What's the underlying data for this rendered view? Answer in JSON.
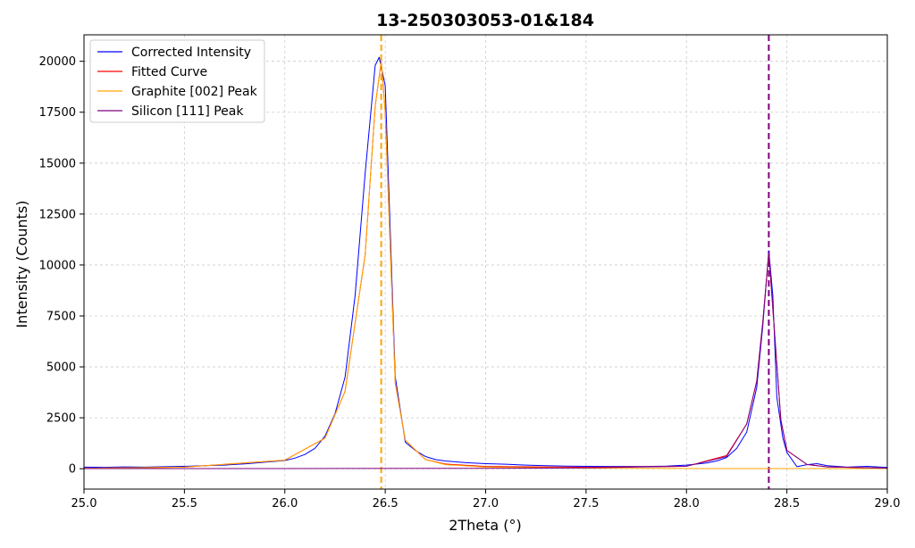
{
  "chart_data": {
    "type": "line",
    "title": "13-250303053-01&184",
    "xlabel": "2Theta (°)",
    "ylabel": "Intensity (Counts)",
    "xlim": [
      25.0,
      29.0
    ],
    "ylim": [
      -1000,
      21300
    ],
    "xticks": [
      "25.0",
      "25.5",
      "26.0",
      "26.5",
      "27.0",
      "27.5",
      "28.0",
      "28.5",
      "29.0"
    ],
    "yticks": [
      "0",
      "2500",
      "5000",
      "7500",
      "10000",
      "12500",
      "15000",
      "17500",
      "20000"
    ],
    "grid": true,
    "legend_position": "top-left",
    "series": [
      {
        "name": "Corrected Intensity",
        "color": "#0000ff",
        "x": [
          25.0,
          25.1,
          25.2,
          25.3,
          25.4,
          25.5,
          25.6,
          25.7,
          25.8,
          25.9,
          26.0,
          26.05,
          26.1,
          26.15,
          26.2,
          26.25,
          26.3,
          26.35,
          26.4,
          26.45,
          26.47,
          26.5,
          26.55,
          26.6,
          26.65,
          26.7,
          26.75,
          26.8,
          26.9,
          27.0,
          27.1,
          27.2,
          27.3,
          27.4,
          27.5,
          27.6,
          27.7,
          27.8,
          27.9,
          28.0,
          28.1,
          28.15,
          28.2,
          28.25,
          28.3,
          28.35,
          28.38,
          28.41,
          28.43,
          28.45,
          28.48,
          28.5,
          28.55,
          28.6,
          28.65,
          28.7,
          28.8,
          28.9,
          29.0
        ],
        "y": [
          80,
          70,
          90,
          80,
          100,
          120,
          150,
          180,
          240,
          320,
          400,
          520,
          700,
          1000,
          1600,
          2700,
          4500,
          8500,
          14500,
          19800,
          20200,
          18800,
          4500,
          1300,
          900,
          600,
          450,
          380,
          300,
          250,
          220,
          180,
          150,
          130,
          120,
          110,
          110,
          110,
          130,
          180,
          280,
          380,
          550,
          1000,
          1800,
          4000,
          7000,
          10700,
          8500,
          3500,
          1500,
          800,
          100,
          200,
          250,
          150,
          80,
          120,
          60
        ]
      },
      {
        "name": "Fitted Curve",
        "color": "#ff0000",
        "x": [
          25.0,
          25.5,
          26.0,
          26.2,
          26.3,
          26.4,
          26.45,
          26.48,
          26.5,
          26.55,
          26.6,
          26.7,
          26.8,
          27.0,
          27.5,
          28.0,
          28.2,
          28.3,
          28.35,
          28.38,
          28.41,
          28.44,
          28.47,
          28.5,
          28.6,
          28.7,
          29.0
        ],
        "y": [
          20,
          80,
          420,
          1500,
          3800,
          10500,
          17800,
          20000,
          17500,
          4200,
          1400,
          450,
          230,
          110,
          70,
          120,
          650,
          2200,
          4300,
          7200,
          10600,
          6500,
          2400,
          900,
          210,
          90,
          30
        ]
      },
      {
        "name": "Graphite [002] Peak",
        "color": "#ffa500",
        "x": [
          25.0,
          25.5,
          26.0,
          26.2,
          26.3,
          26.4,
          26.45,
          26.48,
          26.5,
          26.55,
          26.6,
          26.7,
          26.8,
          27.0,
          27.5,
          28.0,
          29.0
        ],
        "y": [
          20,
          80,
          420,
          1500,
          3800,
          10500,
          17800,
          20000,
          17500,
          4200,
          1400,
          450,
          200,
          80,
          25,
          10,
          5
        ]
      },
      {
        "name": "Silicon [111] Peak",
        "color": "#800080",
        "x": [
          25.0,
          26.0,
          27.0,
          27.5,
          28.0,
          28.2,
          28.3,
          28.35,
          28.38,
          28.41,
          28.44,
          28.47,
          28.5,
          28.6,
          28.7,
          29.0
        ],
        "y": [
          5,
          10,
          20,
          40,
          120,
          600,
          2200,
          4300,
          7200,
          10600,
          6500,
          2400,
          900,
          210,
          90,
          30
        ]
      }
    ],
    "vlines": [
      {
        "x": 26.48,
        "color": "#ffa500",
        "style": "dashed"
      },
      {
        "x": 28.41,
        "color": "#800080",
        "style": "dashed"
      }
    ]
  }
}
